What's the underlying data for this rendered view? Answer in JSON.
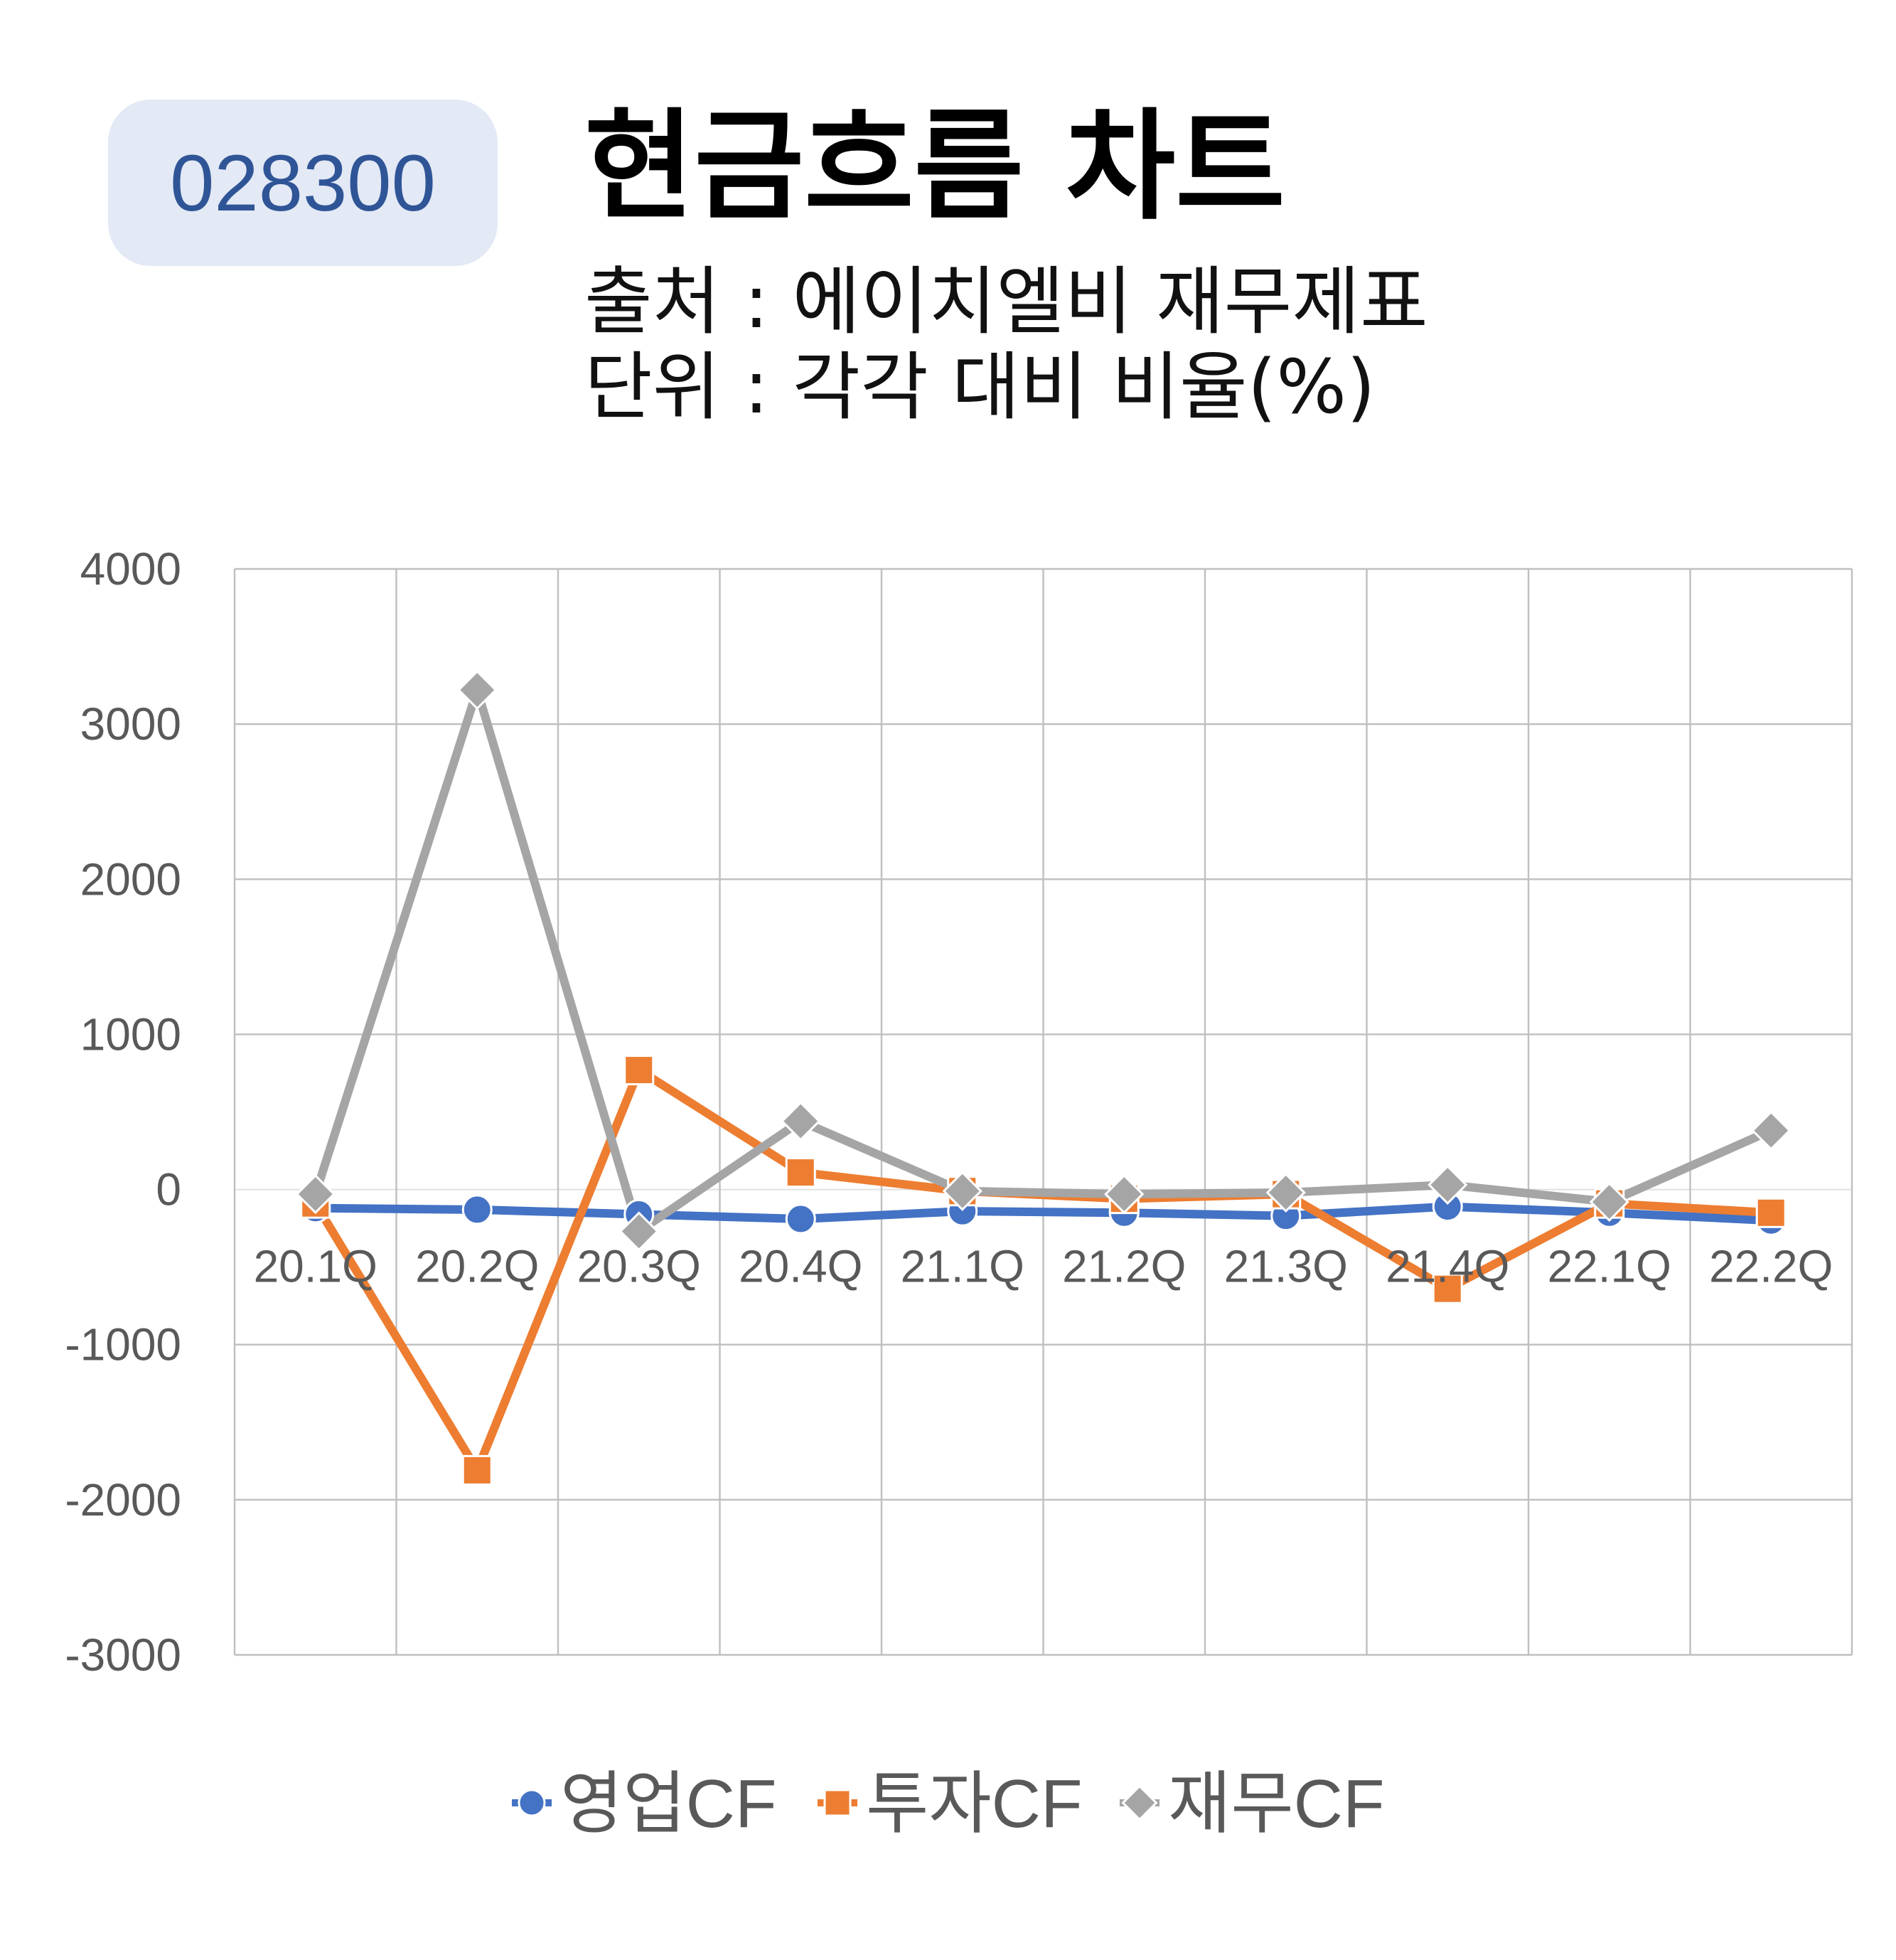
{
  "ticker": "028300",
  "title": "현금흐름 차트",
  "source_line": "출처 : 에이치엘비 재무제표",
  "unit_line": "단위 : 각각 대비 비율(%)",
  "chart_data": {
    "type": "line",
    "title": "",
    "xlabel": "",
    "ylabel": "",
    "categories": [
      "20.1Q",
      "20.2Q",
      "20.3Q",
      "20.4Q",
      "21.1Q",
      "21.2Q",
      "21.3Q",
      "21.4Q",
      "22.1Q",
      "22.2Q"
    ],
    "ylim": [
      -3000,
      4000
    ],
    "yticks": [
      4000,
      3000,
      2000,
      1000,
      0,
      -1000,
      -2000,
      -3000
    ],
    "grid": true,
    "legend_position": "bottom",
    "series": [
      {
        "name": "영업CF",
        "color": "#4472c4",
        "marker": "circle",
        "values": [
          -120,
          -130,
          -160,
          -190,
          -140,
          -150,
          -170,
          -110,
          -150,
          -200
        ]
      },
      {
        "name": "투자CF",
        "color": "#ed7d31",
        "marker": "square",
        "values": [
          -90,
          -1810,
          770,
          110,
          -10,
          -60,
          -30,
          -640,
          -90,
          -150
        ]
      },
      {
        "name": "재무CF",
        "color": "#a5a5a5",
        "marker": "diamond",
        "values": [
          -30,
          3220,
          -270,
          440,
          -10,
          -30,
          -20,
          30,
          -80,
          380
        ]
      }
    ]
  }
}
